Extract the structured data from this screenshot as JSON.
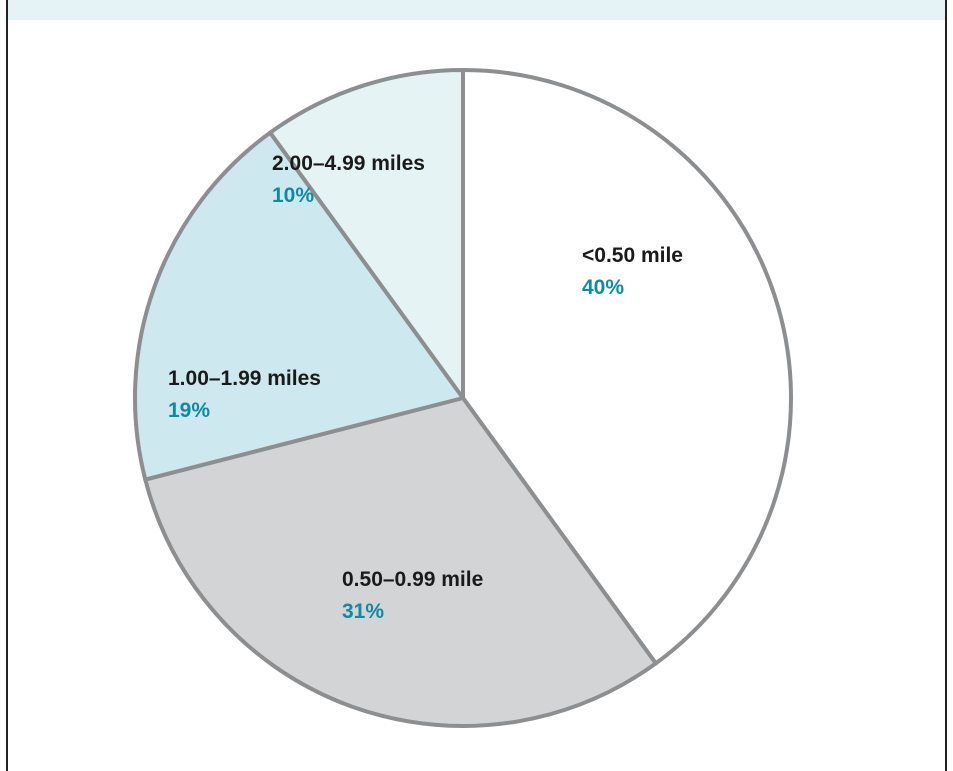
{
  "chart_data": {
    "type": "pie",
    "title": "",
    "slices": [
      {
        "label": "<0.50 mile",
        "percent": "40%",
        "value": 40,
        "color": "#ffffff"
      },
      {
        "label": "0.50–0.99 mile",
        "percent": "31%",
        "value": 31,
        "color": "#d3d4d6"
      },
      {
        "label": "1.00–1.99 miles",
        "percent": "19%",
        "value": 19,
        "color": "#cde8ee"
      },
      {
        "label": "2.00–4.99 miles",
        "percent": "10%",
        "value": 10,
        "color": "#e6f3f5"
      }
    ],
    "colors": {
      "outline": "#8d8e90",
      "label_text": "#1a1a1a",
      "percent_text": "#0e8aa3",
      "header_band": "#e6f3f6"
    }
  }
}
